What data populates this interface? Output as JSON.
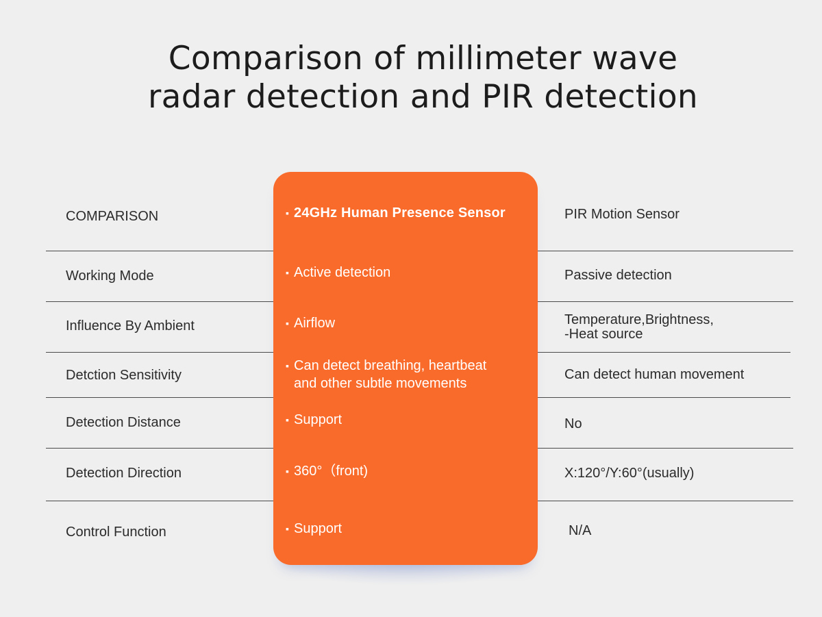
{
  "title": {
    "line1": "Comparison of millimeter wave",
    "line2": "radar detection and PIR detection"
  },
  "bullet_char": "▪",
  "rows": [
    {
      "label": "COMPARISON",
      "radar": "24GHz Human Presence Sensor",
      "pir": "PIR Motion Sensor"
    },
    {
      "label": "Working Mode",
      "radar": "Active detection",
      "pir": "Passive detection"
    },
    {
      "label": "Influence By Ambient",
      "radar": "Airflow",
      "pir": "Temperature,Brightness,",
      "pir_line2": "-Heat source"
    },
    {
      "label": "Detction Sensitivity",
      "radar": "Can detect breathing, heartbeat",
      "radar_line2": "and other subtle movements",
      "pir": "Can detect human movement"
    },
    {
      "label": "Detection Distance",
      "radar": "Support",
      "pir": "No"
    },
    {
      "label": "Detection Direction",
      "radar": "360°（front)",
      "pir": "X:120°/Y:60°(usually)"
    },
    {
      "label": "Control Function",
      "radar": "Support",
      "pir": "N/A"
    }
  ],
  "colors": {
    "accent": "#f96b2b",
    "background": "#efefef",
    "text": "#2b2b2b",
    "divider": "#4a4a4a"
  }
}
